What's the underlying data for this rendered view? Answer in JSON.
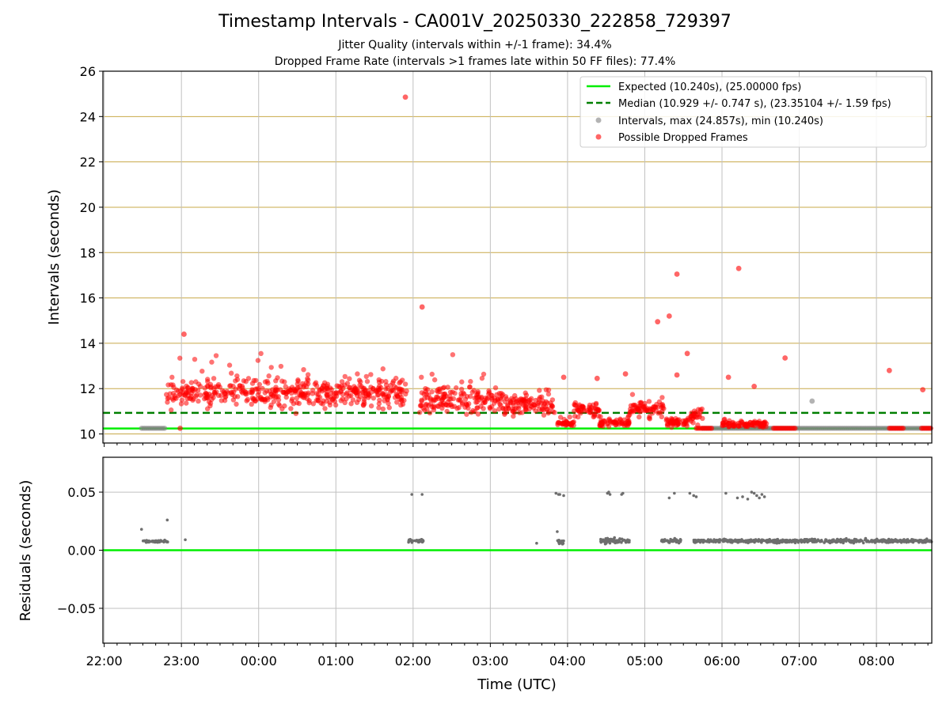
{
  "title": "Timestamp Intervals - CA001V_20250330_222858_729397",
  "subtitle_1": "Jitter Quality (intervals within +/-1 frame): 34.4%",
  "subtitle_2": "Dropped Frame Rate (intervals >1 frames late within 50 FF files): 77.4%",
  "colors": {
    "expected": "#00ee00",
    "median": "#007f00",
    "intervals": "#808080",
    "dropped": "#ff0000",
    "hgrid": "#c8a94a",
    "vgrid": "#c0c0c0",
    "residuals": "#6e6e6e"
  },
  "chart_data": [
    {
      "type": "scatter",
      "panel": "top",
      "ylabel": "Intervals (seconds)",
      "xlabel": "",
      "ylim": [
        9.6,
        26
      ],
      "xlim": [
        "21:59",
        "08:43"
      ],
      "yticks": [
        10,
        12,
        14,
        16,
        18,
        20,
        22,
        24,
        26
      ],
      "ytick_labels": [
        "10",
        "12",
        "14",
        "16",
        "18",
        "20",
        "22",
        "24",
        "26"
      ],
      "grid": true,
      "legend_position": "top-right",
      "legend": [
        {
          "key": "expected",
          "label": "Expected (10.240s), (25.00000 fps)"
        },
        {
          "key": "median",
          "label": "Median (10.929 +/- 0.747 s), (23.35104 +/- 1.59 fps)"
        },
        {
          "key": "intervals",
          "label": "Intervals, max (24.857s), min (10.240s)"
        },
        {
          "key": "dropped",
          "label": "Possible Dropped Frames"
        }
      ],
      "reference_lines": {
        "expected": 10.24,
        "median": 10.929
      },
      "series": [
        {
          "key": "intervals",
          "label": "Intervals, max (24.857s), min (10.240s)",
          "segments": [
            {
              "from": "22:29",
              "to": "22:48",
              "y": 10.25
            },
            {
              "from": "05:45",
              "to": "08:43",
              "y": 10.25
            }
          ],
          "points": [
            {
              "x": "07:10",
              "y": 11.45
            }
          ]
        },
        {
          "key": "dropped",
          "label": "Possible Dropped Frames",
          "bands": [
            {
              "from": "22:48",
              "to": "01:55",
              "center": 11.8,
              "spread": 1.1
            },
            {
              "from": "02:05",
              "to": "03:10",
              "center": 11.5,
              "spread": 1.0
            },
            {
              "from": "03:10",
              "to": "03:50",
              "center": 11.3,
              "spread": 0.8
            },
            {
              "from": "03:52",
              "to": "04:05",
              "center": 10.45,
              "spread": 0.2
            },
            {
              "from": "04:05",
              "to": "04:25",
              "center": 11.1,
              "spread": 0.6
            },
            {
              "from": "04:25",
              "to": "04:48",
              "center": 10.5,
              "spread": 0.3
            },
            {
              "from": "04:48",
              "to": "05:15",
              "center": 11.1,
              "spread": 0.6
            },
            {
              "from": "05:15",
              "to": "05:35",
              "center": 10.5,
              "spread": 0.3
            },
            {
              "from": "05:35",
              "to": "05:45",
              "center": 10.9,
              "spread": 0.6
            },
            {
              "from": "06:00",
              "to": "06:35",
              "center": 10.45,
              "spread": 0.25
            }
          ],
          "segments": [
            {
              "from": "05:40",
              "to": "05:53",
              "y": 10.25
            },
            {
              "from": "06:40",
              "to": "06:57",
              "y": 10.25
            },
            {
              "from": "08:10",
              "to": "08:22",
              "y": 10.25
            },
            {
              "from": "08:35",
              "to": "08:43",
              "y": 10.25
            }
          ],
          "points": [
            {
              "x": "01:54",
              "y": 24.857
            },
            {
              "x": "06:13",
              "y": 17.3
            },
            {
              "x": "05:25",
              "y": 17.05
            },
            {
              "x": "02:07",
              "y": 15.6
            },
            {
              "x": "05:19",
              "y": 15.2
            },
            {
              "x": "05:10",
              "y": 14.95
            },
            {
              "x": "05:33",
              "y": 13.55
            },
            {
              "x": "06:49",
              "y": 13.35
            },
            {
              "x": "08:10",
              "y": 12.8
            },
            {
              "x": "08:36",
              "y": 11.95
            },
            {
              "x": "06:25",
              "y": 12.1
            },
            {
              "x": "05:25",
              "y": 12.6
            },
            {
              "x": "04:45",
              "y": 12.65
            },
            {
              "x": "04:23",
              "y": 12.45
            },
            {
              "x": "03:57",
              "y": 12.5
            },
            {
              "x": "06:05",
              "y": 12.5
            },
            {
              "x": "23:02",
              "y": 14.4
            },
            {
              "x": "22:59",
              "y": 10.25
            }
          ]
        }
      ]
    },
    {
      "type": "scatter",
      "panel": "bottom",
      "ylabel": "Residuals (seconds)",
      "xlabel": "Time (UTC)",
      "ylim": [
        -0.08,
        0.08
      ],
      "xlim": [
        "21:59",
        "08:43"
      ],
      "yticks": [
        0.05,
        0.0,
        -0.05
      ],
      "ytick_labels": [
        "0.05",
        "0.00",
        "−0.05"
      ],
      "xticks": [
        "22:00",
        "23:00",
        "00:00",
        "01:00",
        "02:00",
        "03:00",
        "04:00",
        "05:00",
        "06:00",
        "07:00",
        "08:00"
      ],
      "grid": true,
      "reference_lines": {
        "zero": 0
      },
      "series": [
        {
          "key": "residuals",
          "label": "",
          "clusters": [
            {
              "from": "22:30",
              "to": "22:50",
              "center": 0.0075,
              "spread": 0.002
            },
            {
              "from": "01:56",
              "to": "02:08",
              "center": 0.008,
              "spread": 0.003
            },
            {
              "from": "03:52",
              "to": "03:57",
              "center": 0.007,
              "spread": 0.004
            },
            {
              "from": "04:25",
              "to": "04:48",
              "center": 0.008,
              "spread": 0.004
            },
            {
              "from": "05:13",
              "to": "05:28",
              "center": 0.008,
              "spread": 0.003
            },
            {
              "from": "05:38",
              "to": "08:43",
              "center": 0.008,
              "spread": 0.003
            }
          ],
          "points": [
            {
              "x": "22:29",
              "y": 0.018
            },
            {
              "x": "22:49",
              "y": 0.026
            },
            {
              "x": "23:03",
              "y": 0.009
            },
            {
              "x": "01:59",
              "y": 0.048
            },
            {
              "x": "02:07",
              "y": 0.048
            },
            {
              "x": "03:36",
              "y": 0.006
            },
            {
              "x": "03:52",
              "y": 0.016
            },
            {
              "x": "03:51",
              "y": 0.049
            },
            {
              "x": "03:53",
              "y": 0.048
            },
            {
              "x": "03:57",
              "y": 0.047
            },
            {
              "x": "03:54",
              "y": 0.048
            },
            {
              "x": "04:31",
              "y": 0.049
            },
            {
              "x": "04:32",
              "y": 0.05
            },
            {
              "x": "04:33",
              "y": 0.048
            },
            {
              "x": "04:42",
              "y": 0.048
            },
            {
              "x": "04:43",
              "y": 0.049
            },
            {
              "x": "05:19",
              "y": 0.045
            },
            {
              "x": "05:23",
              "y": 0.049
            },
            {
              "x": "05:35",
              "y": 0.049
            },
            {
              "x": "05:38",
              "y": 0.047
            },
            {
              "x": "05:40",
              "y": 0.046
            },
            {
              "x": "06:03",
              "y": 0.049
            },
            {
              "x": "06:12",
              "y": 0.045
            },
            {
              "x": "06:16",
              "y": 0.046
            },
            {
              "x": "06:20",
              "y": 0.044
            },
            {
              "x": "06:23",
              "y": 0.05
            },
            {
              "x": "06:25",
              "y": 0.049
            },
            {
              "x": "06:27",
              "y": 0.047
            },
            {
              "x": "06:29",
              "y": 0.045
            },
            {
              "x": "06:31",
              "y": 0.048
            },
            {
              "x": "06:33",
              "y": 0.046
            }
          ]
        }
      ]
    }
  ]
}
